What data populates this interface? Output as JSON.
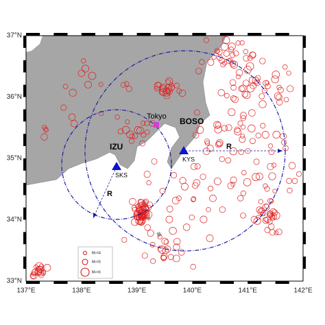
{
  "map": {
    "lat_labels": [
      "37°N",
      "36°N",
      "35°N",
      "34°N",
      "33°N"
    ],
    "lon_labels": [
      "137°E",
      "138°E",
      "139°E",
      "140°E",
      "141°E",
      "142°E"
    ],
    "places": {
      "tokyo": "Tokyo",
      "boso": "BOSO",
      "izu": "IZU",
      "sks": "SKS",
      "kys": "KYS"
    },
    "radius_labels": [
      "R",
      "R"
    ],
    "legend": [
      "M>=4",
      "M>=5",
      "M>=6"
    ]
  }
}
